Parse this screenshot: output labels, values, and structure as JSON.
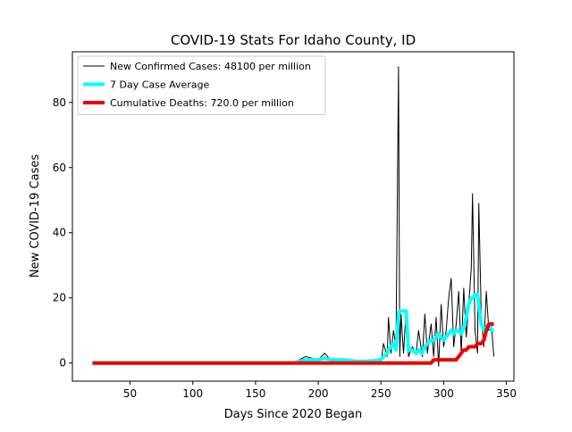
{
  "chart_data": {
    "type": "line",
    "title": "COVID-19 Stats For Idaho County, ID",
    "x_label": "Days Since 2020 Began",
    "y_label": "New COVID-19 Cases",
    "legend": "upper left",
    "xlim": [
      4,
      356
    ],
    "ylim": [
      -5.55,
      95.55
    ],
    "xticks": [
      50,
      100,
      150,
      200,
      250,
      300,
      350
    ],
    "yticks": [
      0,
      20,
      40,
      60,
      80
    ],
    "x": [
      20,
      180,
      190,
      200,
      205,
      210,
      220,
      230,
      240,
      250,
      252,
      255,
      256,
      258,
      260,
      262,
      264,
      265,
      266,
      268,
      270,
      272,
      275,
      278,
      280,
      283,
      285,
      287,
      290,
      292,
      294,
      296,
      298,
      300,
      302,
      304,
      306,
      308,
      310,
      312,
      314,
      316,
      318,
      320,
      322,
      323,
      325,
      327,
      328,
      330,
      332,
      334,
      336,
      338,
      340
    ],
    "series": [
      {
        "name": "New Confirmed Cases: 48100 per million",
        "color": "#000000",
        "values": [
          0,
          0,
          2,
          1,
          3,
          1,
          1,
          0,
          1,
          0,
          6,
          2,
          14,
          3,
          10,
          5,
          91,
          2,
          15,
          3,
          16,
          2,
          5,
          3,
          10,
          2,
          15,
          3,
          12,
          2,
          14,
          -1,
          18,
          5,
          10,
          20,
          26,
          5,
          12,
          22,
          3,
          23,
          8,
          18,
          29,
          52,
          10,
          3,
          49,
          14,
          5,
          22,
          10,
          12,
          2
        ]
      },
      {
        "name": "7 Day Case Average",
        "color": "#00ffff",
        "values": [
          0,
          0,
          1,
          1,
          1.5,
          1,
          1,
          0.5,
          0.5,
          1,
          2,
          3,
          4,
          5,
          6,
          4,
          15,
          16,
          16,
          16,
          16,
          4,
          4,
          3,
          4,
          3,
          5,
          6,
          7,
          7,
          8,
          9,
          8,
          7,
          8,
          9,
          10,
          9,
          10,
          10,
          9,
          11,
          14,
          18,
          20,
          20,
          21,
          21,
          18,
          12,
          10,
          11,
          12,
          10,
          10
        ]
      },
      {
        "name": "Cumulative Deaths: 720.0 per million",
        "color": "#ee0000",
        "values": [
          0,
          0,
          0,
          0,
          0,
          0,
          0,
          0,
          0,
          0,
          0,
          0,
          0,
          0,
          0,
          0,
          0,
          0,
          0,
          0,
          0,
          0,
          0,
          0,
          0,
          0,
          0,
          0,
          0,
          1,
          1,
          1,
          1,
          1,
          1,
          1,
          1,
          1,
          1,
          2,
          3,
          4,
          4,
          5,
          5,
          5,
          5,
          6,
          6,
          6,
          7,
          10,
          12,
          12,
          12
        ]
      }
    ]
  }
}
